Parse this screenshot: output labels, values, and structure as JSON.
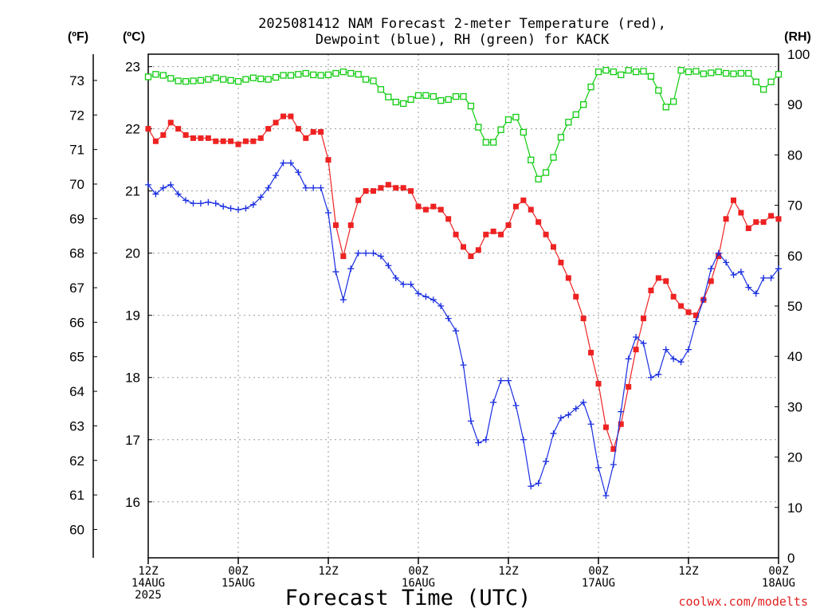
{
  "chart_data": {
    "type": "line",
    "title_lines": [
      "2025081412 NAM Forecast 2-meter Temperature (red),",
      "Dewpoint (blue), RH (green) for KACK"
    ],
    "xlabel": "Forecast Time (UTC)",
    "units": {
      "left_outer": "(ºF)",
      "left_inner": "(ºC)",
      "right": "(RH)"
    },
    "x_range_hours": [
      0,
      84
    ],
    "x_ticks": [
      {
        "h": 0,
        "lines": [
          "12Z",
          "14AUG",
          "2025"
        ]
      },
      {
        "h": 12,
        "lines": [
          "00Z",
          "15AUG"
        ]
      },
      {
        "h": 24,
        "lines": [
          "12Z"
        ]
      },
      {
        "h": 36,
        "lines": [
          "00Z",
          "16AUG"
        ]
      },
      {
        "h": 48,
        "lines": [
          "12Z"
        ]
      },
      {
        "h": 60,
        "lines": [
          "00Z",
          "17AUG"
        ]
      },
      {
        "h": 72,
        "lines": [
          "12Z"
        ]
      },
      {
        "h": 84,
        "lines": [
          "00Z",
          "18AUG"
        ]
      }
    ],
    "celsius_range": [
      15.1,
      23.2
    ],
    "celsius_ticks": [
      16,
      17,
      18,
      19,
      20,
      21,
      22,
      23
    ],
    "fahrenheit_ticks": [
      60,
      61,
      62,
      63,
      64,
      65,
      66,
      67,
      68,
      69,
      70,
      71,
      72,
      73
    ],
    "rh_range": [
      0,
      100
    ],
    "rh_ticks": [
      0,
      10,
      20,
      30,
      40,
      50,
      60,
      70,
      80,
      90,
      100
    ],
    "colors": {
      "temperature": "#ee2222",
      "dewpoint": "#1a2ee0",
      "rh": "#11cc11",
      "grid": "#9a9a9a",
      "credit": "#e02020"
    },
    "series": [
      {
        "name": "Temperature (red)",
        "axis": "celsius",
        "marker": "square",
        "times": [
          0,
          1,
          2,
          3,
          4,
          5,
          6,
          7,
          8,
          9,
          10,
          11,
          12,
          13,
          14,
          15,
          16,
          17,
          18,
          19,
          20,
          21,
          22,
          23,
          24,
          25,
          26,
          27,
          28,
          29,
          30,
          31,
          32,
          33,
          34,
          35,
          36,
          37,
          38,
          39,
          40,
          41,
          42,
          43,
          44,
          45,
          46,
          47,
          48,
          49,
          50,
          51,
          52,
          53,
          54,
          55,
          56,
          57,
          58,
          59,
          60,
          61,
          62,
          63,
          64,
          65,
          66,
          67,
          68,
          69,
          70,
          71,
          72,
          73,
          74,
          75,
          76,
          77,
          78,
          79,
          80,
          81,
          82,
          83,
          84
        ],
        "values": [
          22.0,
          21.8,
          21.9,
          22.1,
          22.0,
          21.9,
          21.85,
          21.85,
          21.85,
          21.8,
          21.8,
          21.8,
          21.75,
          21.8,
          21.8,
          21.85,
          22.0,
          22.1,
          22.2,
          22.2,
          22.0,
          21.85,
          21.95,
          21.95,
          21.5,
          20.45,
          19.95,
          20.45,
          20.85,
          21.0,
          21.0,
          21.05,
          21.1,
          21.05,
          21.05,
          21.0,
          20.75,
          20.7,
          20.75,
          20.7,
          20.55,
          20.3,
          20.1,
          19.95,
          20.05,
          20.3,
          20.35,
          20.3,
          20.45,
          20.75,
          20.85,
          20.7,
          20.5,
          20.3,
          20.1,
          19.85,
          19.6,
          19.3,
          18.95,
          18.4,
          17.9,
          17.2,
          16.85,
          17.25,
          17.85,
          18.45,
          18.95,
          19.4,
          19.6,
          19.55,
          19.3,
          19.15,
          19.05,
          19.0,
          19.25,
          19.55,
          19.95,
          20.55,
          20.85,
          20.65,
          20.4,
          20.5,
          20.5,
          20.6,
          20.55
        ]
      },
      {
        "name": "Dewpoint (blue)",
        "axis": "celsius",
        "marker": "plus",
        "times": [
          0,
          1,
          2,
          3,
          4,
          5,
          6,
          7,
          8,
          9,
          10,
          11,
          12,
          13,
          14,
          15,
          16,
          17,
          18,
          19,
          20,
          21,
          22,
          23,
          24,
          25,
          26,
          27,
          28,
          29,
          30,
          31,
          32,
          33,
          34,
          35,
          36,
          37,
          38,
          39,
          40,
          41,
          42,
          43,
          44,
          45,
          46,
          47,
          48,
          49,
          50,
          51,
          52,
          53,
          54,
          55,
          56,
          57,
          58,
          59,
          60,
          61,
          62,
          63,
          64,
          65,
          66,
          67,
          68,
          69,
          70,
          71,
          72,
          73,
          74,
          75,
          76,
          77,
          78,
          79,
          80,
          81,
          82,
          83,
          84
        ],
        "values": [
          21.1,
          20.95,
          21.05,
          21.1,
          20.95,
          20.85,
          20.8,
          20.8,
          20.82,
          20.8,
          20.75,
          20.72,
          20.7,
          20.72,
          20.78,
          20.9,
          21.05,
          21.25,
          21.45,
          21.45,
          21.3,
          21.05,
          21.05,
          21.05,
          20.65,
          19.7,
          19.25,
          19.75,
          20.0,
          20.0,
          20.0,
          19.95,
          19.8,
          19.6,
          19.5,
          19.5,
          19.35,
          19.3,
          19.25,
          19.15,
          18.95,
          18.75,
          18.2,
          17.3,
          16.95,
          17.0,
          17.6,
          17.95,
          17.95,
          17.55,
          17.0,
          16.25,
          16.3,
          16.65,
          17.1,
          17.35,
          17.4,
          17.5,
          17.6,
          17.25,
          16.55,
          16.1,
          16.6,
          17.45,
          18.3,
          18.65,
          18.55,
          18.0,
          18.05,
          18.45,
          18.3,
          18.25,
          18.45,
          18.9,
          19.25,
          19.75,
          20.0,
          19.85,
          19.65,
          19.7,
          19.45,
          19.35,
          19.6,
          19.6,
          19.75
        ]
      },
      {
        "name": "RH (green)",
        "axis": "rh",
        "marker": "open-square",
        "times": [
          0,
          1,
          2,
          3,
          4,
          5,
          6,
          7,
          8,
          9,
          10,
          11,
          12,
          13,
          14,
          15,
          16,
          17,
          18,
          19,
          20,
          21,
          22,
          23,
          24,
          25,
          26,
          27,
          28,
          29,
          30,
          31,
          32,
          33,
          34,
          35,
          36,
          37,
          38,
          39,
          40,
          41,
          42,
          43,
          44,
          45,
          46,
          47,
          48,
          49,
          50,
          51,
          52,
          53,
          54,
          55,
          56,
          57,
          58,
          59,
          60,
          61,
          62,
          63,
          64,
          65,
          66,
          67,
          68,
          69,
          70,
          71,
          72,
          73,
          74,
          75,
          76,
          77,
          78,
          79,
          80,
          81,
          82,
          83,
          84
        ],
        "values": [
          95.5,
          96,
          95.8,
          95.2,
          94.7,
          94.6,
          94.7,
          94.8,
          95,
          95.3,
          95,
          94.8,
          94.6,
          95,
          95.3,
          95.1,
          95,
          95.4,
          95.8,
          95.8,
          96,
          96.2,
          95.9,
          95.8,
          95.9,
          96.2,
          96.5,
          96.2,
          96,
          95,
          94.7,
          93,
          91.5,
          90.5,
          90.2,
          91,
          91.8,
          91.8,
          91.6,
          90.8,
          91,
          91.6,
          91.6,
          89.7,
          85.5,
          82.5,
          82.5,
          85,
          87,
          87.5,
          84.5,
          79,
          75.2,
          76.5,
          79.5,
          83.5,
          86.5,
          88,
          90,
          93.5,
          96.5,
          96.8,
          96.5,
          95.9,
          96.8,
          96.5,
          96.6,
          95.6,
          92.8,
          89.5,
          90.6,
          96.8,
          96.5,
          96.6,
          96.1,
          96.3,
          96.5,
          96.2,
          96.1,
          96.2,
          96.2,
          94.5,
          93,
          94.5,
          96
        ]
      }
    ],
    "credit": "coolwx.com/modelts"
  }
}
